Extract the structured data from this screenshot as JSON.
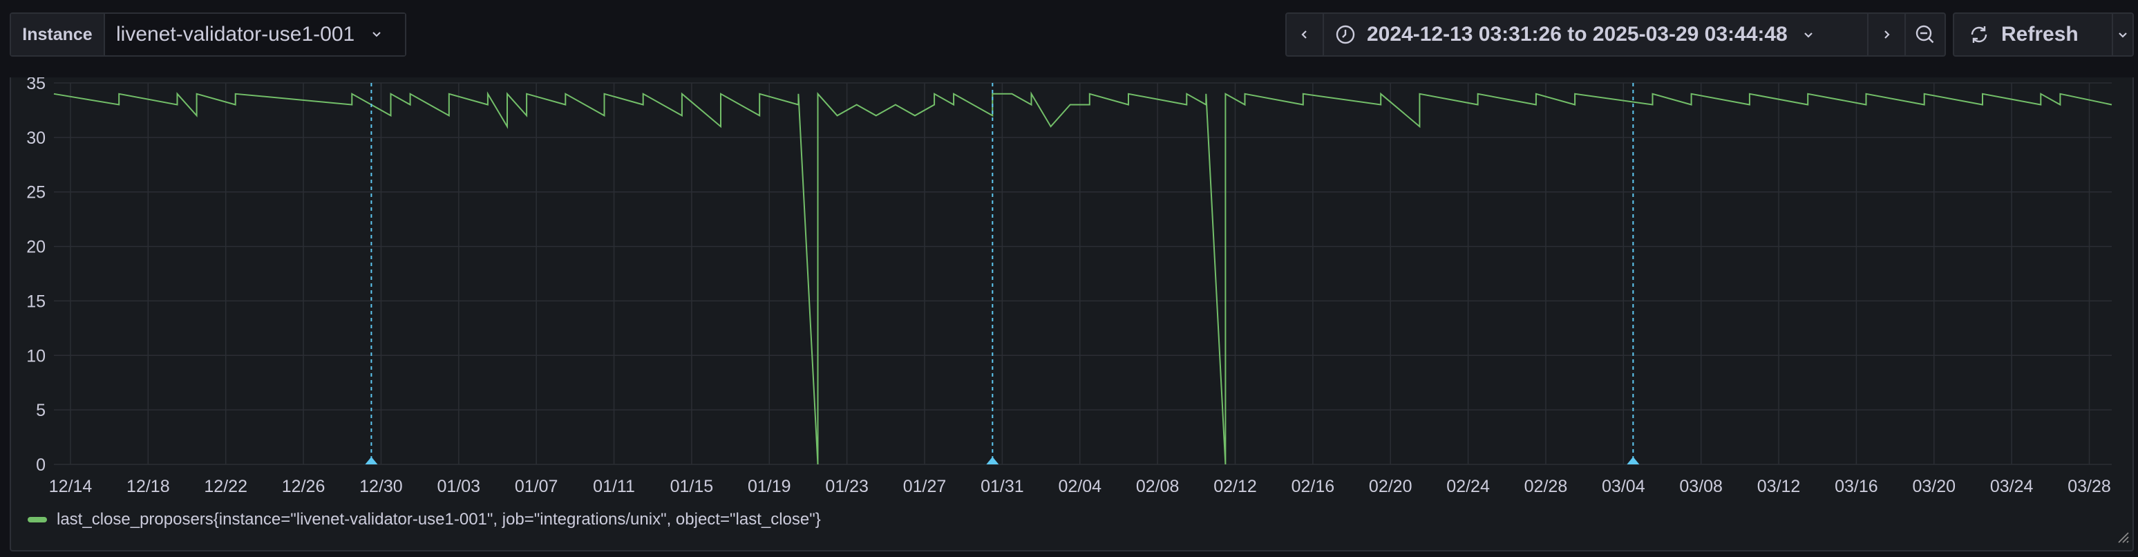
{
  "toolbar": {
    "variable_label": "Instance",
    "variable_value": "livenet-validator-use1-001",
    "time_range": "2024-12-13 03:31:26 to 2025-03-29 03:44:48",
    "refresh_label": "Refresh"
  },
  "icons": {
    "prev": "chevron-left-icon",
    "clock": "clock-icon",
    "dropdown": "chevron-down-icon",
    "next": "chevron-right-icon",
    "zoom": "zoom-out-icon",
    "refresh": "refresh-icon"
  },
  "colors": {
    "series": "#73bf69",
    "annotation": "#5fc9f2",
    "grid": "#2b2e34",
    "axis_text": "#ccccdc"
  },
  "chart_data": {
    "type": "line",
    "x_start": "2024-12-13",
    "x_end": "2025-03-29",
    "ylim": [
      0,
      35
    ],
    "y_ticks": [
      0,
      5,
      10,
      15,
      20,
      25,
      30,
      35
    ],
    "x_tick_labels": [
      "12/14",
      "12/18",
      "12/22",
      "12/26",
      "12/30",
      "01/03",
      "01/07",
      "01/11",
      "01/15",
      "01/19",
      "01/23",
      "01/27",
      "01/31",
      "02/04",
      "02/08",
      "02/12",
      "02/16",
      "02/20",
      "02/24",
      "02/28",
      "03/04",
      "03/08",
      "03/12",
      "03/16",
      "03/20",
      "03/24",
      "03/28"
    ],
    "grid": true,
    "legend_placement": "bottom-left",
    "annotations": [
      "2024-12-29",
      "2025-01-30",
      "2025-03-04"
    ],
    "series": [
      {
        "name": "last_close_proposers{instance=\"livenet-validator-use1-001\", job=\"integrations/unix\", object=\"last_close\"}",
        "baseline": 34,
        "points": [
          [
            "2024-12-13",
            34
          ],
          [
            "2024-12-16",
            33
          ],
          [
            "2024-12-16",
            34
          ],
          [
            "2024-12-19",
            33
          ],
          [
            "2024-12-19",
            34
          ],
          [
            "2024-12-20",
            32
          ],
          [
            "2024-12-20",
            34
          ],
          [
            "2024-12-22",
            33
          ],
          [
            "2024-12-22",
            34
          ],
          [
            "2024-12-28",
            33
          ],
          [
            "2024-12-28",
            34
          ],
          [
            "2024-12-30",
            32
          ],
          [
            "2024-12-30",
            34
          ],
          [
            "2024-12-31",
            33
          ],
          [
            "2024-12-31",
            34
          ],
          [
            "2025-01-02",
            32
          ],
          [
            "2025-01-02",
            34
          ],
          [
            "2025-01-04",
            33
          ],
          [
            "2025-01-04",
            34
          ],
          [
            "2025-01-05",
            31
          ],
          [
            "2025-01-05",
            34
          ],
          [
            "2025-01-06",
            32
          ],
          [
            "2025-01-06",
            34
          ],
          [
            "2025-01-08",
            33
          ],
          [
            "2025-01-08",
            34
          ],
          [
            "2025-01-10",
            32
          ],
          [
            "2025-01-10",
            34
          ],
          [
            "2025-01-12",
            33
          ],
          [
            "2025-01-12",
            34
          ],
          [
            "2025-01-14",
            32
          ],
          [
            "2025-01-14",
            34
          ],
          [
            "2025-01-16",
            31
          ],
          [
            "2025-01-16",
            34
          ],
          [
            "2025-01-18",
            32
          ],
          [
            "2025-01-18",
            34
          ],
          [
            "2025-01-20",
            33
          ],
          [
            "2025-01-20",
            34
          ],
          [
            "2025-01-21",
            0
          ],
          [
            "2025-01-21",
            34
          ],
          [
            "2025-01-22",
            32
          ],
          [
            "2025-01-23",
            33
          ],
          [
            "2025-01-24",
            32
          ],
          [
            "2025-01-25",
            33
          ],
          [
            "2025-01-26",
            32
          ],
          [
            "2025-01-27",
            33
          ],
          [
            "2025-01-27",
            34
          ],
          [
            "2025-01-28",
            33
          ],
          [
            "2025-01-28",
            34
          ],
          [
            "2025-01-30",
            32
          ],
          [
            "2025-01-30",
            34
          ],
          [
            "2025-01-31",
            34
          ],
          [
            "2025-02-01",
            33
          ],
          [
            "2025-02-01",
            34
          ],
          [
            "2025-02-02",
            31
          ],
          [
            "2025-02-03",
            33
          ],
          [
            "2025-02-04",
            33
          ],
          [
            "2025-02-04",
            34
          ],
          [
            "2025-02-06",
            33
          ],
          [
            "2025-02-06",
            34
          ],
          [
            "2025-02-09",
            33
          ],
          [
            "2025-02-09",
            34
          ],
          [
            "2025-02-10",
            33
          ],
          [
            "2025-02-10",
            34
          ],
          [
            "2025-02-11",
            0
          ],
          [
            "2025-02-11",
            34
          ],
          [
            "2025-02-12",
            33
          ],
          [
            "2025-02-12",
            34
          ],
          [
            "2025-02-15",
            33
          ],
          [
            "2025-02-15",
            34
          ],
          [
            "2025-02-19",
            33
          ],
          [
            "2025-02-19",
            34
          ],
          [
            "2025-02-21",
            31
          ],
          [
            "2025-02-21",
            34
          ],
          [
            "2025-02-24",
            33
          ],
          [
            "2025-02-24",
            34
          ],
          [
            "2025-02-27",
            33
          ],
          [
            "2025-02-27",
            34
          ],
          [
            "2025-03-01",
            33
          ],
          [
            "2025-03-01",
            34
          ],
          [
            "2025-03-05",
            33
          ],
          [
            "2025-03-05",
            34
          ],
          [
            "2025-03-07",
            33
          ],
          [
            "2025-03-07",
            34
          ],
          [
            "2025-03-10",
            33
          ],
          [
            "2025-03-10",
            34
          ],
          [
            "2025-03-13",
            33
          ],
          [
            "2025-03-13",
            34
          ],
          [
            "2025-03-16",
            33
          ],
          [
            "2025-03-16",
            34
          ],
          [
            "2025-03-19",
            33
          ],
          [
            "2025-03-19",
            34
          ],
          [
            "2025-03-22",
            33
          ],
          [
            "2025-03-22",
            34
          ],
          [
            "2025-03-25",
            33
          ],
          [
            "2025-03-25",
            34
          ],
          [
            "2025-03-26",
            33
          ],
          [
            "2025-03-26",
            34
          ],
          [
            "2025-03-29",
            33
          ]
        ]
      }
    ]
  }
}
